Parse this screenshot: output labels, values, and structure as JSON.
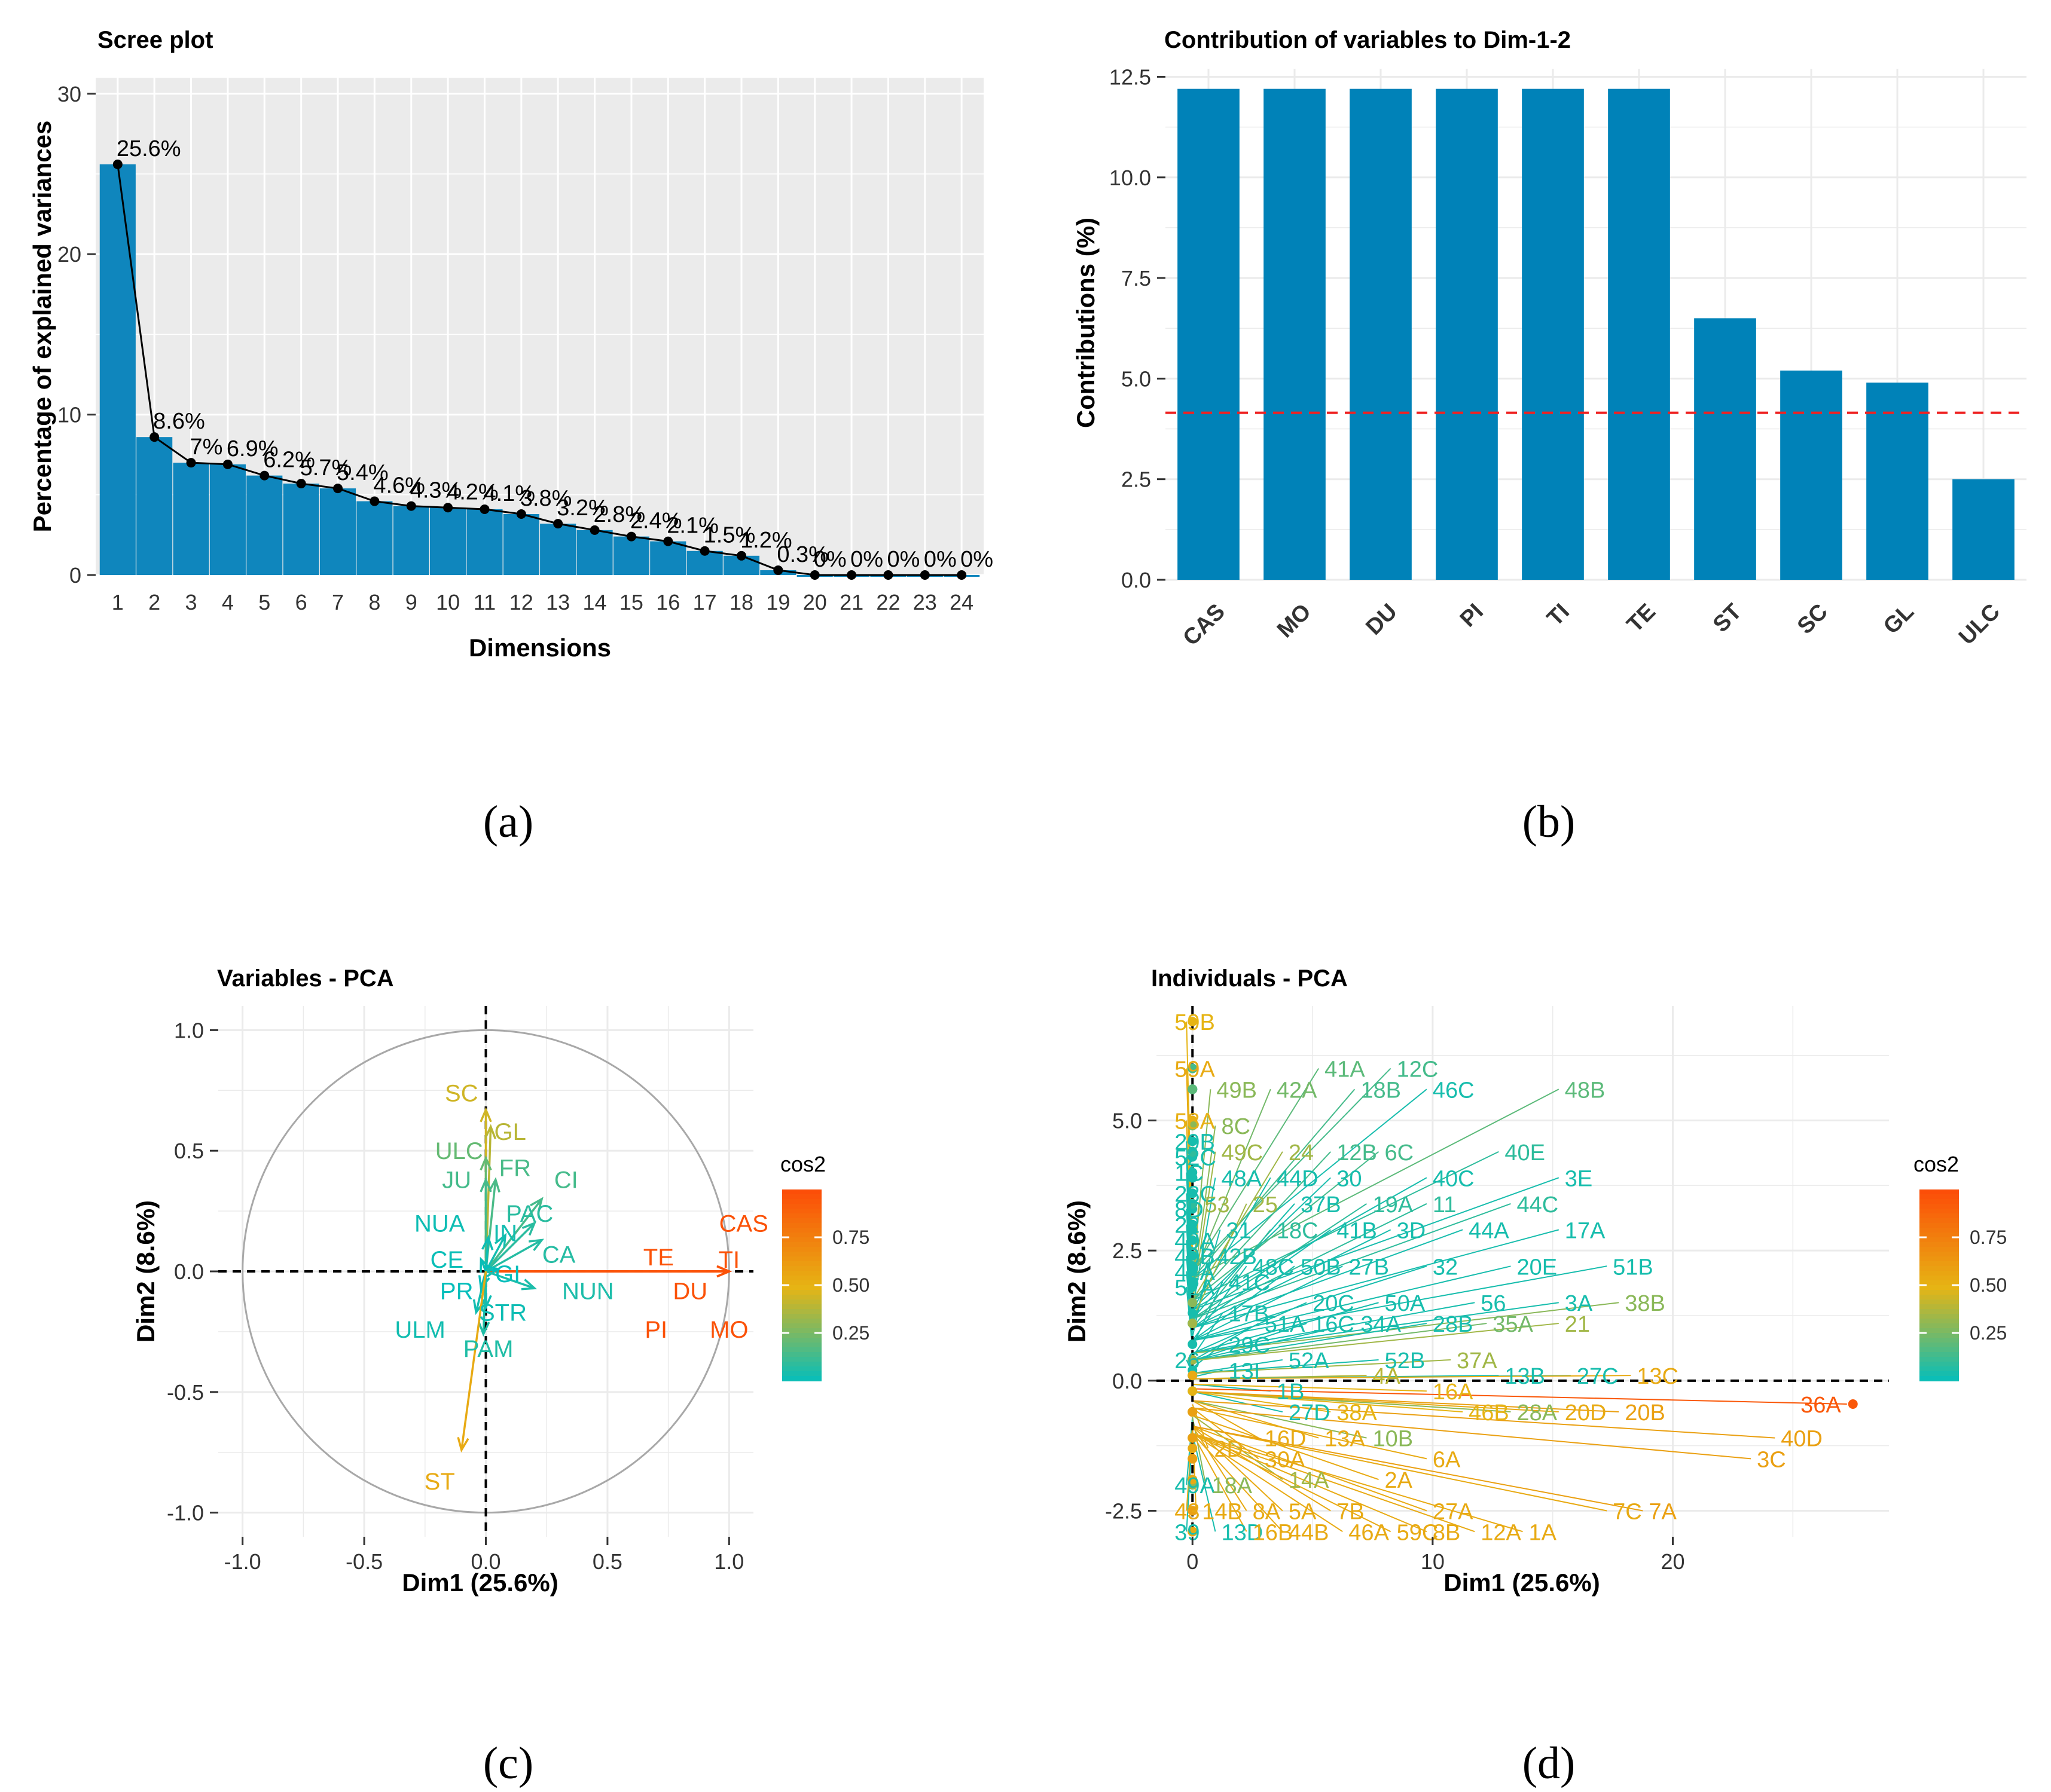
{
  "chart_data": [
    {
      "type": "bar",
      "panel_label": "(a)",
      "title": "Scree plot",
      "xlabel": "Dimensions",
      "ylabel": "Percentage of explained variances",
      "ylim": [
        0,
        31
      ],
      "yticks": [
        "0",
        "10",
        "20",
        "30"
      ],
      "categories": [
        "1",
        "2",
        "3",
        "4",
        "5",
        "6",
        "7",
        "8",
        "9",
        "10",
        "11",
        "12",
        "13",
        "14",
        "15",
        "16",
        "17",
        "18",
        "19",
        "20",
        "21",
        "22",
        "23",
        "24"
      ],
      "values": [
        25.6,
        8.6,
        7.0,
        6.9,
        6.2,
        5.7,
        5.4,
        4.6,
        4.3,
        4.2,
        4.1,
        3.8,
        3.2,
        2.8,
        2.4,
        2.1,
        1.5,
        1.2,
        0.3,
        0.0,
        0.0,
        0.0,
        0.0,
        0.0
      ],
      "data_labels": [
        "25.6%",
        "8.6%",
        "7%",
        "6.9%",
        "6.2%",
        "5.7%",
        "5.4%",
        "4.6%",
        "4.3%",
        "4.2%",
        "4.1%",
        "3.8%",
        "3.2%",
        "2.8%",
        "2.4%",
        "2.1%",
        "1.5%",
        "1.2%",
        "0.3%",
        "0%",
        "0%",
        "0%",
        "0%",
        "0%"
      ],
      "bar_color": "#0f86bd",
      "line_color": "#000000"
    },
    {
      "type": "bar",
      "panel_label": "(b)",
      "title": "Contribution of variables to Dim-1-2",
      "xlabel": "",
      "ylabel": "Contributions (%)",
      "ylim": [
        0,
        12.7
      ],
      "yticks": [
        "0.0",
        "2.5",
        "5.0",
        "7.5",
        "10.0",
        "12.5"
      ],
      "categories": [
        "CAS",
        "MO",
        "DU",
        "PI",
        "TI",
        "TE",
        "ST",
        "SC",
        "GL",
        "ULC"
      ],
      "values": [
        12.2,
        12.2,
        12.2,
        12.2,
        12.2,
        12.2,
        6.5,
        5.2,
        4.9,
        2.5
      ],
      "reference_line": 4.15,
      "bar_color": "#0082b8",
      "ref_color": "#ee2222"
    },
    {
      "type": "scatter",
      "panel_label": "(c)",
      "title": "Variables - PCA",
      "xlabel": "Dim1 (25.6%)",
      "ylabel": "Dim2 (8.6%)",
      "xlim": [
        -1.1,
        1.1
      ],
      "ylim": [
        -1.1,
        1.1
      ],
      "xticks": [
        "-1.0",
        "-0.5",
        "0.0",
        "0.5",
        "1.0"
      ],
      "yticks": [
        "-1.0",
        "-0.5",
        "0.0",
        "0.5",
        "1.0"
      ],
      "legend_title": "cos2",
      "legend_ticks": [
        "0.25",
        "0.50",
        "0.75"
      ],
      "vectors": [
        {
          "name": "CAS",
          "x": 1.0,
          "y": 0.0,
          "cos2": 0.98
        },
        {
          "name": "TI",
          "x": 1.0,
          "y": 0.0,
          "cos2": 0.98
        },
        {
          "name": "TE",
          "x": 1.0,
          "y": 0.0,
          "cos2": 0.98
        },
        {
          "name": "DU",
          "x": 1.0,
          "y": 0.0,
          "cos2": 0.98
        },
        {
          "name": "MO",
          "x": 1.0,
          "y": 0.0,
          "cos2": 0.98
        },
        {
          "name": "PI",
          "x": 1.0,
          "y": 0.0,
          "cos2": 0.98
        },
        {
          "name": "SC",
          "x": 0.0,
          "y": 0.67,
          "cos2": 0.45
        },
        {
          "name": "GL",
          "x": 0.02,
          "y": 0.6,
          "cos2": 0.4
        },
        {
          "name": "ULC",
          "x": 0.0,
          "y": 0.47,
          "cos2": 0.22
        },
        {
          "name": "JU",
          "x": 0.0,
          "y": 0.38,
          "cos2": 0.15
        },
        {
          "name": "FR",
          "x": 0.04,
          "y": 0.38,
          "cos2": 0.16
        },
        {
          "name": "CI",
          "x": 0.23,
          "y": 0.3,
          "cos2": 0.15
        },
        {
          "name": "PAC",
          "x": 0.2,
          "y": 0.2,
          "cos2": 0.09
        },
        {
          "name": "IN",
          "x": 0.08,
          "y": 0.15,
          "cos2": 0.04
        },
        {
          "name": "NUA",
          "x": 0.01,
          "y": 0.14,
          "cos2": 0.03
        },
        {
          "name": "CE",
          "x": -0.02,
          "y": 0.05,
          "cos2": 0.02
        },
        {
          "name": "CA",
          "x": 0.23,
          "y": 0.13,
          "cos2": 0.08
        },
        {
          "name": "GI",
          "x": 0.05,
          "y": 0.01,
          "cos2": 0.01
        },
        {
          "name": "NUN",
          "x": 0.2,
          "y": -0.07,
          "cos2": 0.06
        },
        {
          "name": "PR",
          "x": -0.02,
          "y": -0.07,
          "cos2": 0.01
        },
        {
          "name": "STR",
          "x": 0.0,
          "y": -0.15,
          "cos2": 0.03
        },
        {
          "name": "ULM",
          "x": -0.04,
          "y": -0.17,
          "cos2": 0.04
        },
        {
          "name": "PAM",
          "x": -0.01,
          "y": -0.26,
          "cos2": 0.07
        },
        {
          "name": "ST",
          "x": -0.1,
          "y": -0.74,
          "cos2": 0.55
        }
      ]
    },
    {
      "type": "scatter",
      "panel_label": "(d)",
      "title": "Individuals - PCA",
      "xlabel": "Dim1 (25.6%)",
      "ylabel": "Dim2 (8.6%)",
      "xlim": [
        -1.5,
        29
      ],
      "ylim": [
        -3.0,
        7.2
      ],
      "xticks": [
        "0",
        "10",
        "20"
      ],
      "yticks": [
        "-2.5",
        "0.0",
        "2.5",
        "5.0"
      ],
      "legend_title": "cos2",
      "legend_ticks": [
        "0.25",
        "0.50",
        "0.75"
      ],
      "points": [
        {
          "name": "59B",
          "x": 0.0,
          "y": 6.9,
          "cos2": 0.5
        },
        {
          "name": "59A",
          "x": 0.0,
          "y": 6.0,
          "cos2": 0.55
        },
        {
          "name": "58A",
          "x": 0.0,
          "y": 5.0,
          "cos2": 0.52
        },
        {
          "name": "29B",
          "x": 0.0,
          "y": 4.6,
          "cos2": 0.05
        },
        {
          "name": "52C",
          "x": 0.0,
          "y": 4.3,
          "cos2": 0.05
        },
        {
          "name": "1C",
          "x": 0.0,
          "y": 4.0,
          "cos2": 0.05
        },
        {
          "name": "28C",
          "x": 0.0,
          "y": 3.6,
          "cos2": 0.05
        },
        {
          "name": "8D",
          "x": 0.0,
          "y": 3.3,
          "cos2": 0.05
        },
        {
          "name": "22",
          "x": 0.0,
          "y": 3.0,
          "cos2": 0.05
        },
        {
          "name": "40A",
          "x": 0.0,
          "y": 2.7,
          "cos2": 0.05
        },
        {
          "name": "40B",
          "x": 0.0,
          "y": 2.4,
          "cos2": 0.05
        },
        {
          "name": "42A",
          "x": 0.0,
          "y": 2.1,
          "cos2": 0.05
        },
        {
          "name": "52A",
          "x": 0.0,
          "y": 1.8,
          "cos2": 0.05
        },
        {
          "name": "26",
          "x": 0.0,
          "y": 0.4,
          "cos2": 0.05
        },
        {
          "name": "49A",
          "x": 0.0,
          "y": -2.0,
          "cos2": 0.05
        },
        {
          "name": "43",
          "x": 0.0,
          "y": -2.5,
          "cos2": 0.55
        },
        {
          "name": "39",
          "x": 0.0,
          "y": -2.9,
          "cos2": 0.05
        },
        {
          "name": "49B",
          "x": 1.0,
          "y": 5.6,
          "cos2": 0.3
        },
        {
          "name": "8C",
          "x": 1.2,
          "y": 4.9,
          "cos2": 0.3
        },
        {
          "name": "49C",
          "x": 1.2,
          "y": 4.4,
          "cos2": 0.35
        },
        {
          "name": "48A",
          "x": 1.2,
          "y": 3.9,
          "cos2": 0.05
        },
        {
          "name": "53",
          "x": 0.5,
          "y": 3.4,
          "cos2": 0.35
        },
        {
          "name": "31",
          "x": 1.4,
          "y": 2.9,
          "cos2": 0.05
        },
        {
          "name": "42B",
          "x": 1.0,
          "y": 2.4,
          "cos2": 0.05
        },
        {
          "name": "41C",
          "x": 1.5,
          "y": 1.9,
          "cos2": 0.05
        },
        {
          "name": "17B",
          "x": 1.5,
          "y": 1.3,
          "cos2": 0.05
        },
        {
          "name": "29C",
          "x": 1.5,
          "y": 0.7,
          "cos2": 0.05
        },
        {
          "name": "13I",
          "x": 1.5,
          "y": 0.2,
          "cos2": 0.05
        },
        {
          "name": "2D",
          "x": 0.9,
          "y": -1.3,
          "cos2": 0.55
        },
        {
          "name": "18A",
          "x": 0.8,
          "y": -2.0,
          "cos2": 0.3
        },
        {
          "name": "14B",
          "x": 0.4,
          "y": -2.5,
          "cos2": 0.55
        },
        {
          "name": "13D",
          "x": 1.2,
          "y": -2.9,
          "cos2": 0.05
        },
        {
          "name": "41A",
          "x": 5.5,
          "y": 6.0,
          "cos2": 0.2
        },
        {
          "name": "12C",
          "x": 8.5,
          "y": 6.0,
          "cos2": 0.15
        },
        {
          "name": "42A",
          "x": 3.5,
          "y": 5.6,
          "cos2": 0.25
        },
        {
          "name": "18B",
          "x": 7.0,
          "y": 5.6,
          "cos2": 0.15
        },
        {
          "name": "46C",
          "x": 10.0,
          "y": 5.6,
          "cos2": 0.05
        },
        {
          "name": "48B",
          "x": 15.5,
          "y": 5.6,
          "cos2": 0.2
        },
        {
          "name": "24",
          "x": 4.0,
          "y": 4.4,
          "cos2": 0.35
        },
        {
          "name": "12B",
          "x": 6.0,
          "y": 4.4,
          "cos2": 0.15
        },
        {
          "name": "6C",
          "x": 8.0,
          "y": 4.4,
          "cos2": 0.15
        },
        {
          "name": "40E",
          "x": 13.0,
          "y": 4.4,
          "cos2": 0.1
        },
        {
          "name": "44D",
          "x": 3.5,
          "y": 3.9,
          "cos2": 0.05
        },
        {
          "name": "30",
          "x": 6.0,
          "y": 3.9,
          "cos2": 0.05
        },
        {
          "name": "40C",
          "x": 10.0,
          "y": 3.9,
          "cos2": 0.05
        },
        {
          "name": "3E",
          "x": 15.5,
          "y": 3.9,
          "cos2": 0.05
        },
        {
          "name": "25",
          "x": 2.5,
          "y": 3.4,
          "cos2": 0.35
        },
        {
          "name": "37B",
          "x": 4.5,
          "y": 3.4,
          "cos2": 0.05
        },
        {
          "name": "19A",
          "x": 7.5,
          "y": 3.4,
          "cos2": 0.1
        },
        {
          "name": "11",
          "x": 10.0,
          "y": 3.4,
          "cos2": 0.1
        },
        {
          "name": "44C",
          "x": 13.5,
          "y": 3.4,
          "cos2": 0.1
        },
        {
          "name": "18C",
          "x": 3.5,
          "y": 2.9,
          "cos2": 0.1
        },
        {
          "name": "41B",
          "x": 6.0,
          "y": 2.9,
          "cos2": 0.05
        },
        {
          "name": "3D",
          "x": 8.5,
          "y": 2.9,
          "cos2": 0.05
        },
        {
          "name": "44A",
          "x": 11.5,
          "y": 2.9,
          "cos2": 0.05
        },
        {
          "name": "17A",
          "x": 15.5,
          "y": 2.9,
          "cos2": 0.05
        },
        {
          "name": "48C",
          "x": 2.5,
          "y": 2.2,
          "cos2": 0.05
        },
        {
          "name": "50B",
          "x": 4.5,
          "y": 2.2,
          "cos2": 0.05
        },
        {
          "name": "27B",
          "x": 6.5,
          "y": 2.2,
          "cos2": 0.05
        },
        {
          "name": "32",
          "x": 10.0,
          "y": 2.2,
          "cos2": 0.05
        },
        {
          "name": "20E",
          "x": 13.5,
          "y": 2.2,
          "cos2": 0.05
        },
        {
          "name": "51B",
          "x": 17.5,
          "y": 2.2,
          "cos2": 0.05
        },
        {
          "name": "20C",
          "x": 5.0,
          "y": 1.5,
          "cos2": 0.05
        },
        {
          "name": "50A",
          "x": 8.0,
          "y": 1.5,
          "cos2": 0.05
        },
        {
          "name": "56",
          "x": 12.0,
          "y": 1.5,
          "cos2": 0.05
        },
        {
          "name": "3A",
          "x": 15.5,
          "y": 1.5,
          "cos2": 0.05
        },
        {
          "name": "38B",
          "x": 18.0,
          "y": 1.5,
          "cos2": 0.3
        },
        {
          "name": "51A",
          "x": 3.0,
          "y": 1.1,
          "cos2": 0.05
        },
        {
          "name": "16C",
          "x": 5.0,
          "y": 1.1,
          "cos2": 0.05
        },
        {
          "name": "34A",
          "x": 7.0,
          "y": 1.1,
          "cos2": 0.05
        },
        {
          "name": "28B",
          "x": 10.0,
          "y": 1.1,
          "cos2": 0.05
        },
        {
          "name": "35A",
          "x": 12.5,
          "y": 1.1,
          "cos2": 0.25
        },
        {
          "name": "21",
          "x": 15.5,
          "y": 1.1,
          "cos2": 0.35
        },
        {
          "name": "52A",
          "x": 4.0,
          "y": 0.4,
          "cos2": 0.05
        },
        {
          "name": "52B",
          "x": 8.0,
          "y": 0.4,
          "cos2": 0.05
        },
        {
          "name": "37A",
          "x": 11.0,
          "y": 0.4,
          "cos2": 0.35
        },
        {
          "name": "1B",
          "x": 3.5,
          "y": -0.2,
          "cos2": 0.05
        },
        {
          "name": "4A",
          "x": 7.5,
          "y": 0.1,
          "cos2": 0.4
        },
        {
          "name": "16A",
          "x": 10.0,
          "y": -0.2,
          "cos2": 0.5
        },
        {
          "name": "13B",
          "x": 13.0,
          "y": 0.1,
          "cos2": 0.05
        },
        {
          "name": "27C",
          "x": 16.0,
          "y": 0.1,
          "cos2": 0.05
        },
        {
          "name": "13C",
          "x": 18.5,
          "y": 0.1,
          "cos2": 0.55
        },
        {
          "name": "27D",
          "x": 4.0,
          "y": -0.6,
          "cos2": 0.05
        },
        {
          "name": "38A",
          "x": 6.0,
          "y": -0.6,
          "cos2": 0.5
        },
        {
          "name": "46B",
          "x": 11.5,
          "y": -0.6,
          "cos2": 0.5
        },
        {
          "name": "28A",
          "x": 13.5,
          "y": -0.6,
          "cos2": 0.3
        },
        {
          "name": "20D",
          "x": 15.5,
          "y": -0.6,
          "cos2": 0.55
        },
        {
          "name": "20B",
          "x": 18.0,
          "y": -0.6,
          "cos2": 0.6
        },
        {
          "name": "16D",
          "x": 3.0,
          "y": -1.1,
          "cos2": 0.55
        },
        {
          "name": "13A",
          "x": 5.5,
          "y": -1.1,
          "cos2": 0.55
        },
        {
          "name": "10B",
          "x": 7.5,
          "y": -1.1,
          "cos2": 0.3
        },
        {
          "name": "40D",
          "x": 24.5,
          "y": -1.1,
          "cos2": 0.6
        },
        {
          "name": "36A",
          "x": 27.5,
          "y": -0.45,
          "cos2": 0.95
        },
        {
          "name": "30A",
          "x": 3.0,
          "y": -1.5,
          "cos2": 0.55
        },
        {
          "name": "6A",
          "x": 10.0,
          "y": -1.5,
          "cos2": 0.55
        },
        {
          "name": "3C",
          "x": 23.5,
          "y": -1.5,
          "cos2": 0.6
        },
        {
          "name": "14A",
          "x": 4.0,
          "y": -1.9,
          "cos2": 0.35
        },
        {
          "name": "2A",
          "x": 8.0,
          "y": -1.9,
          "cos2": 0.55
        },
        {
          "name": "8A",
          "x": 2.5,
          "y": -2.5,
          "cos2": 0.55
        },
        {
          "name": "5A",
          "x": 4.0,
          "y": -2.5,
          "cos2": 0.55
        },
        {
          "name": "7B",
          "x": 6.0,
          "y": -2.5,
          "cos2": 0.55
        },
        {
          "name": "27A",
          "x": 10.0,
          "y": -2.5,
          "cos2": 0.55
        },
        {
          "name": "7C",
          "x": 17.5,
          "y": -2.5,
          "cos2": 0.55
        },
        {
          "name": "7A",
          "x": 19.0,
          "y": -2.5,
          "cos2": 0.6
        },
        {
          "name": "16B",
          "x": 2.5,
          "y": -2.9,
          "cos2": 0.55
        },
        {
          "name": "44B",
          "x": 4.0,
          "y": -2.9,
          "cos2": 0.55
        },
        {
          "name": "46A",
          "x": 6.5,
          "y": -2.9,
          "cos2": 0.55
        },
        {
          "name": "59C",
          "x": 8.5,
          "y": -2.9,
          "cos2": 0.55
        },
        {
          "name": "8B",
          "x": 10.0,
          "y": -2.9,
          "cos2": 0.55
        },
        {
          "name": "12A",
          "x": 12.0,
          "y": -2.9,
          "cos2": 0.55
        },
        {
          "name": "1A",
          "x": 14.0,
          "y": -2.9,
          "cos2": 0.55
        }
      ]
    }
  ]
}
